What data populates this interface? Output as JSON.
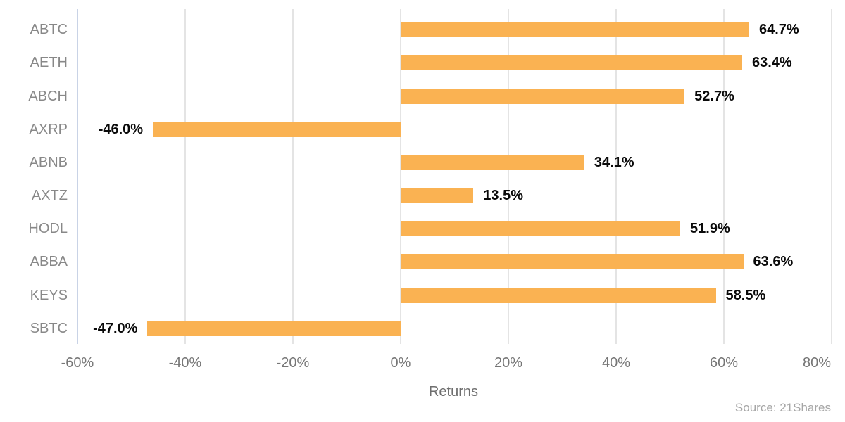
{
  "chart_data": {
    "type": "bar",
    "orientation": "horizontal",
    "title": "",
    "xlabel": "Returns",
    "ylabel": "",
    "categories": [
      "ABTC",
      "AETH",
      "ABCH",
      "AXRP",
      "ABNB",
      "AXTZ",
      "HODL",
      "ABBA",
      "KEYS",
      "SBTC"
    ],
    "values": [
      64.7,
      63.4,
      52.7,
      -46.0,
      34.1,
      13.5,
      51.9,
      63.6,
      58.5,
      -47.0
    ],
    "value_labels": [
      "64.7%",
      "63.4%",
      "52.7%",
      "-46.0%",
      "34.1%",
      "13.5%",
      "51.9%",
      "63.6%",
      "58.5%",
      "-47.0%"
    ],
    "xlim": [
      -60,
      80
    ],
    "xticks": [
      -60,
      -40,
      -20,
      0,
      20,
      40,
      60,
      80
    ],
    "xtick_labels": [
      "-60%",
      "-40%",
      "-20%",
      "0%",
      "20%",
      "40%",
      "60%",
      "80%"
    ],
    "grid": "vertical-only",
    "legend": "none",
    "bar_color": "#FAB252",
    "value_label_color": "#0a0a0a",
    "category_label_color": "#888888",
    "tick_label_color": "#767676",
    "axis_line_color": "#c9d3e6",
    "gridline_color": "#e4e4e4"
  },
  "footer": {
    "source": "Source: 21Shares"
  }
}
